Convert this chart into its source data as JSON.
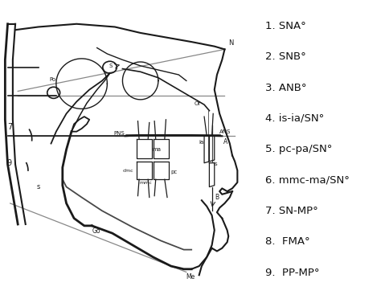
{
  "background_color": "#ffffff",
  "legend_items": [
    "1. SNA°",
    "2. SNB°",
    "3. ANB°",
    "4. is-ia/SN°",
    "5. pc-pa/SN°",
    "6. mmc-ma/SN°",
    "7. SN-MP°",
    "8.  FMA°",
    "9.  PP-MP°"
  ],
  "label_color": "#111111",
  "line_color": "#1a1a1a",
  "gray_color": "#888888",
  "line_width": 1.0,
  "fig_width": 4.74,
  "fig_height": 3.72,
  "dpi": 100
}
